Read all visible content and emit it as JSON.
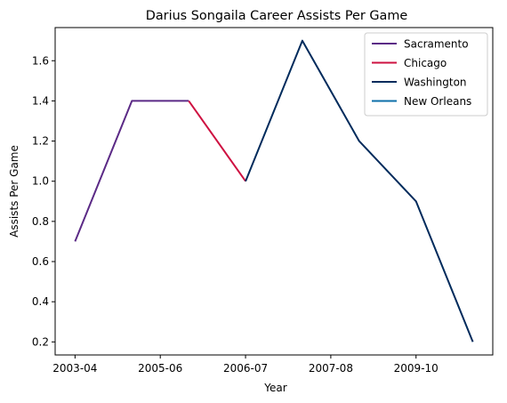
{
  "chart_data": {
    "type": "line",
    "title": "Darius Songaila Career Assists Per Game",
    "xlabel": "Year",
    "ylabel": "Assists Per Game",
    "x_tick_labels": [
      "2003-04",
      "2005-06",
      "2006-07",
      "2007-08",
      "2009-10"
    ],
    "x_tick_positions": [
      0,
      1.5,
      3,
      4.5,
      6
    ],
    "xlim": [
      -0.35,
      7.35
    ],
    "ylim": [
      0.135,
      1.765
    ],
    "y_ticks": [
      0.2,
      0.4,
      0.6,
      0.8,
      1.0,
      1.2,
      1.4,
      1.6
    ],
    "legend_location": "upper right",
    "series": [
      {
        "name": "Sacramento",
        "color": "#5b2a86",
        "x": [
          0,
          1,
          2
        ],
        "y": [
          0.7,
          1.4,
          1.4
        ]
      },
      {
        "name": "Chicago",
        "color": "#ce1141",
        "x": [
          2,
          3
        ],
        "y": [
          1.4,
          1.0
        ]
      },
      {
        "name": "Washington",
        "color": "#002b5c",
        "x": [
          3,
          4,
          5,
          6,
          7
        ],
        "y": [
          1.0,
          1.7,
          1.2,
          0.9,
          0.2
        ]
      },
      {
        "name": "New Orleans",
        "color": "#0c6fa8",
        "x": [],
        "y": []
      }
    ]
  }
}
